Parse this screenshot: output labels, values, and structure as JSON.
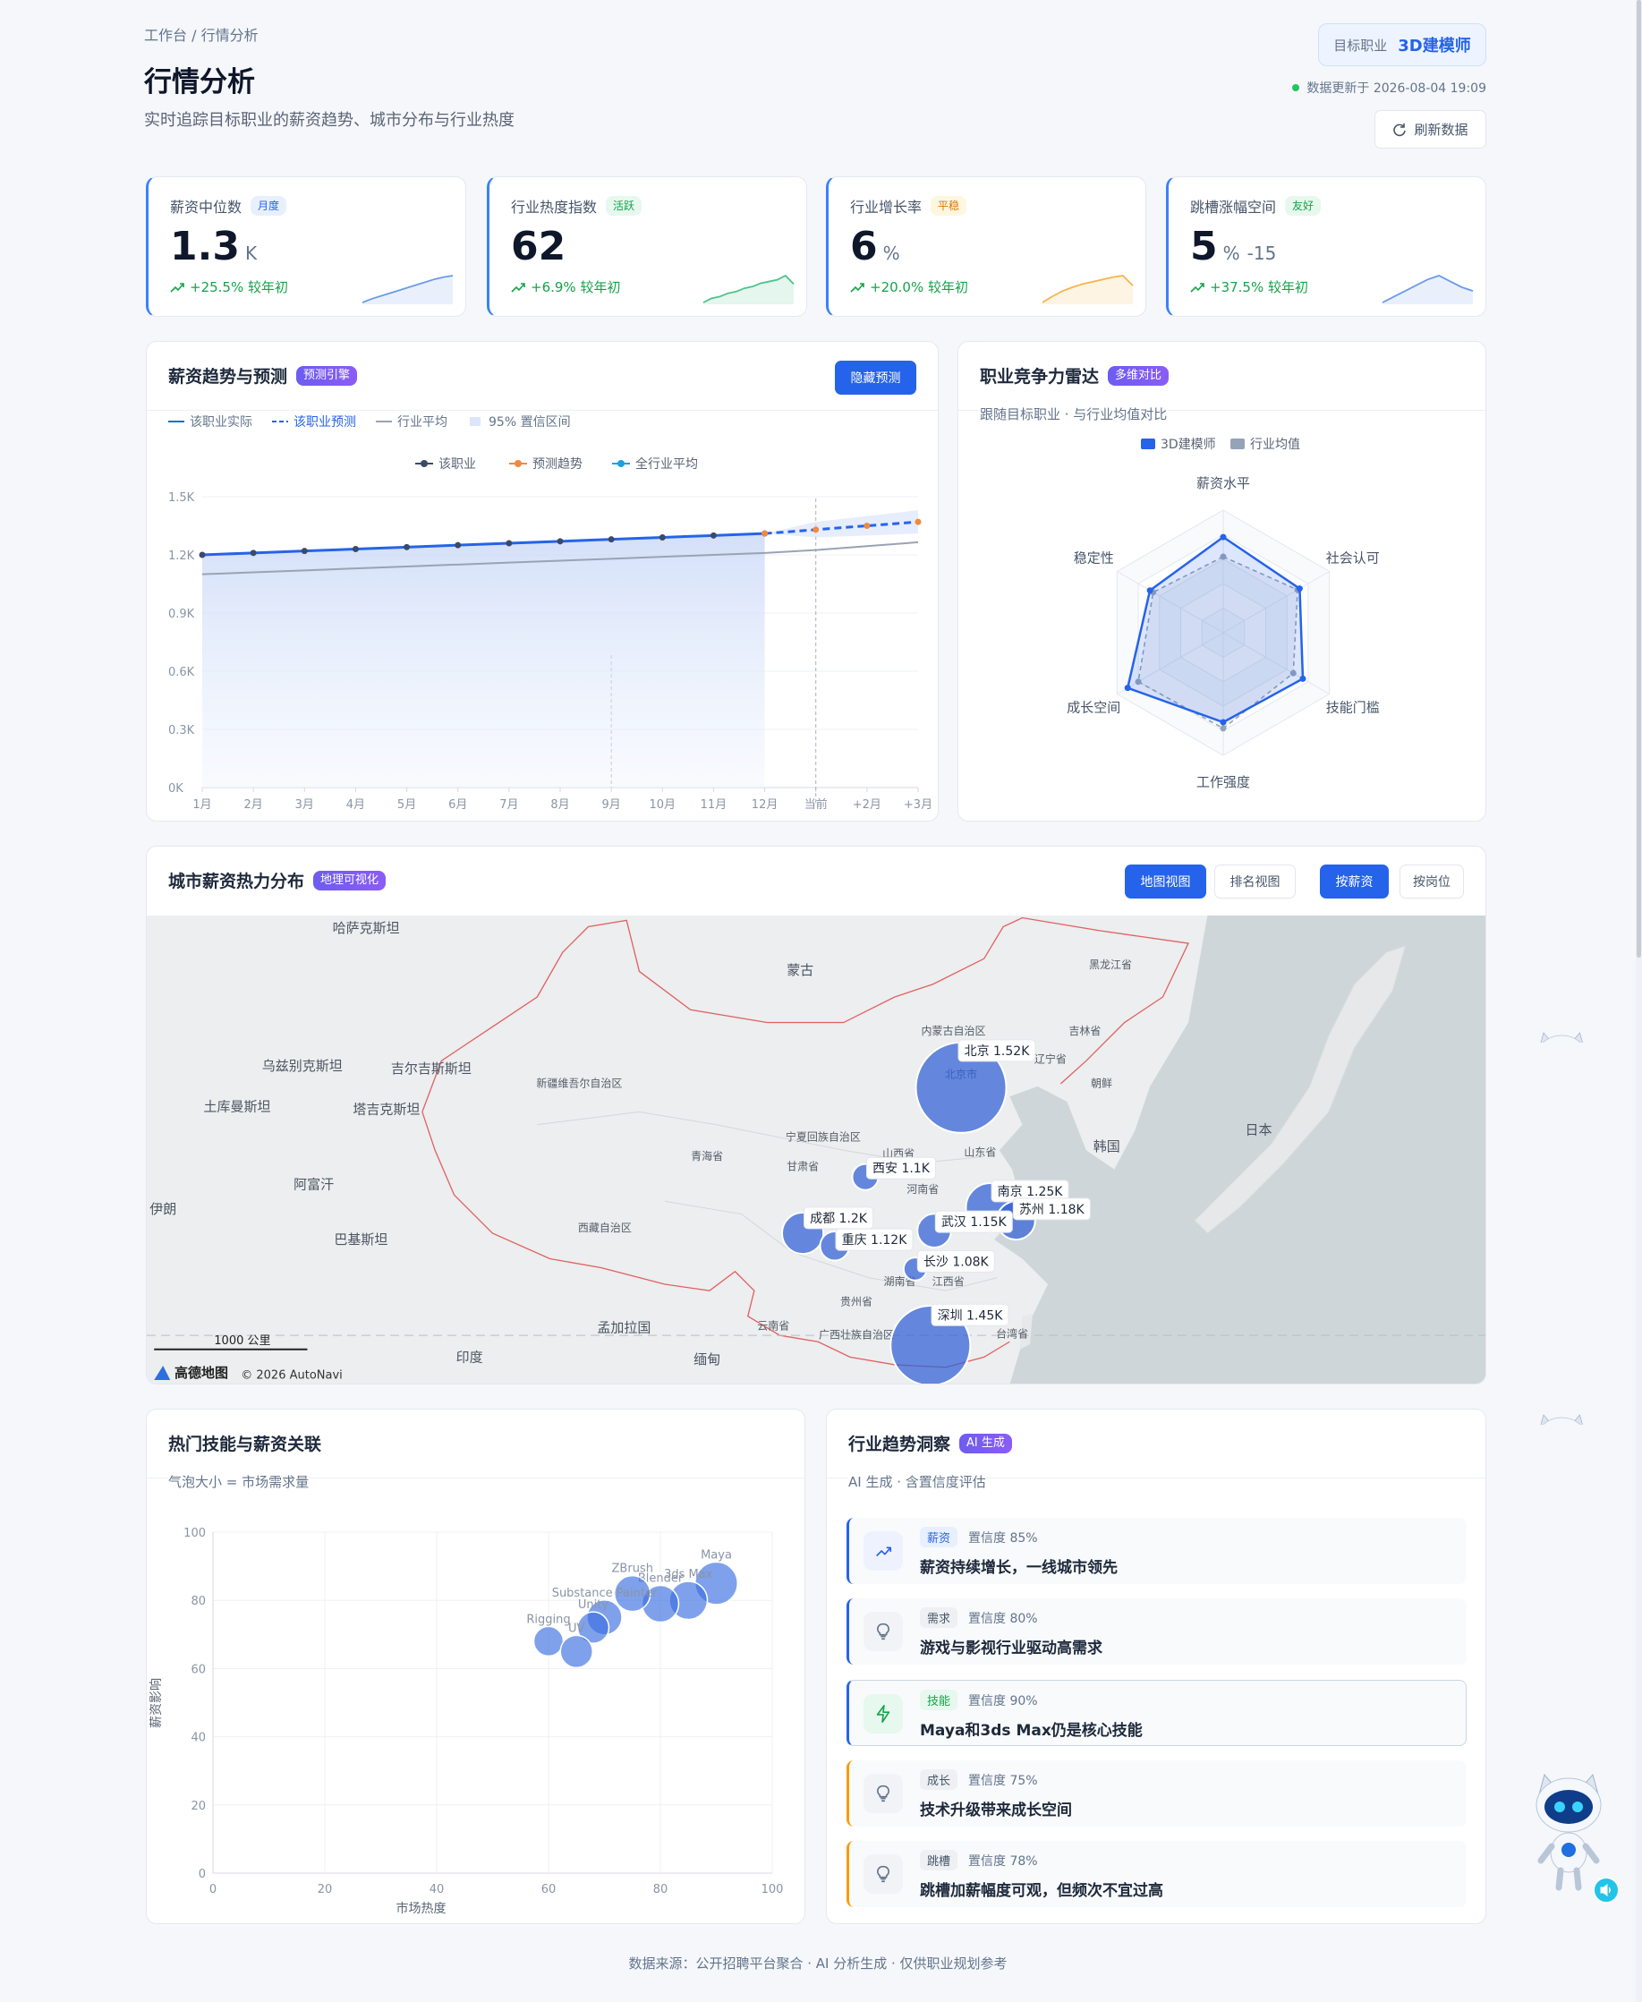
{
  "header": {
    "breadcrumb": "工作台 / 行情分析",
    "title": "行情分析",
    "subtitle": "实时追踪目标职业的薪资趋势、城市分布与行业热度",
    "target_label": "目标职业",
    "target_value": "3D建模师",
    "update_text": "数据更新于 2026-08-04 19:09",
    "refresh": "刷新数据"
  },
  "kpis": [
    {
      "label": "薪资中位数",
      "badge": "月度",
      "value": 1.3,
      "unit": "K",
      "change": "+25.5% 较年初",
      "color": "#6b9be8",
      "spark": [
        2,
        3,
        3.8,
        4.6,
        5.4,
        6.2,
        7,
        7.8,
        8.6,
        9.2,
        9.6
      ]
    },
    {
      "label": "行业热度指数",
      "badge": "活跃",
      "value": 62,
      "change": "+6.9% 较年初",
      "color": "#4cc38a",
      "spark": [
        2,
        3,
        3.4,
        4.2,
        4.6,
        5.4,
        5.8,
        6.6,
        7,
        7.4,
        8.4,
        6.4
      ]
    },
    {
      "label": "行业增长率",
      "badge": "平稳",
      "value": 6,
      "unit": "%",
      "change": "+20.0% 较年初",
      "color": "#f5b54a",
      "spark": [
        2,
        3.6,
        5,
        6,
        6.8,
        7.4,
        8,
        8.6,
        9,
        6.4
      ]
    },
    {
      "label": "跳槽涨幅空间",
      "badge": "友好",
      "value": 5,
      "unit": "%",
      "extra": -15,
      "change": "+37.5% 较年初",
      "color": "#6b9be8",
      "spark": [
        2,
        3.5,
        5,
        6.5,
        8,
        9,
        7.5,
        6,
        5
      ]
    }
  ],
  "salary_trend": {
    "title": "薪资趋势与预测",
    "badge": "预测引擎",
    "button": "隐藏预测",
    "custom_legend": [
      "该职业实际",
      "该职业预测",
      "行业平均",
      "95% 置信区间"
    ],
    "chart_data": {
      "type": "line",
      "categories": [
        "1月",
        "2月",
        "3月",
        "4月",
        "5月",
        "6月",
        "7月",
        "8月",
        "9月",
        "10月",
        "11月",
        "12月",
        "当前",
        "+2月",
        "+3月"
      ],
      "ylim": [
        0,
        1500
      ],
      "yticks": [
        {
          "value": 0,
          "label": "0K"
        },
        {
          "value": 300,
          "label": "0.3K"
        },
        {
          "value": 600,
          "label": "0.6K"
        },
        {
          "value": 900,
          "label": "0.9K"
        },
        {
          "value": 1200,
          "label": "1.2K"
        },
        {
          "value": 1500,
          "label": "1.5K"
        }
      ],
      "grid": true,
      "series": [
        {
          "name": "该职业",
          "color": "#3b4a6b",
          "line_color": "#2563eb",
          "values": [
            1200,
            1210,
            1220,
            1230,
            1240,
            1250,
            1260,
            1270,
            1280,
            1290,
            1300,
            1310,
            null,
            null,
            null
          ]
        },
        {
          "name": "预测趋势",
          "color": "#f08a3c",
          "line_color": "#2563eb",
          "values": [
            null,
            null,
            null,
            null,
            null,
            null,
            null,
            null,
            null,
            null,
            null,
            1310,
            1330,
            1350,
            1370
          ]
        },
        {
          "name": "全行业平均",
          "color": "#1aa3d9",
          "line_color": "#9aa3b2",
          "values": [
            1100,
            1110,
            1120,
            1130,
            1140,
            1150,
            1160,
            1170,
            1180,
            1190,
            1200,
            1210,
            1225,
            1245,
            1265
          ]
        }
      ],
      "band": {
        "lower": [
          null,
          null,
          null,
          null,
          null,
          null,
          null,
          null,
          null,
          null,
          null,
          1310,
          1290,
          1300,
          1310
        ],
        "upper": [
          null,
          null,
          null,
          null,
          null,
          null,
          null,
          null,
          null,
          null,
          null,
          1310,
          1370,
          1400,
          1430
        ]
      }
    }
  },
  "radar": {
    "title": "职业竞争力雷达",
    "badge": "多维对比",
    "subtitle": "跟随目标职业 · 与行业均值对比",
    "chart_data": {
      "type": "radar",
      "indicators": [
        "薪资水平",
        "社会认可",
        "技能门槛",
        "工作强度",
        "成长空间",
        "稳定性"
      ],
      "rlim": [
        0,
        100
      ],
      "series": [
        {
          "name": "3D建模师",
          "color": "#2563eb",
          "values": [
            78,
            72,
            75,
            73,
            90,
            69
          ]
        },
        {
          "name": "行业均值",
          "color": "#94a3b8",
          "values": [
            62,
            70,
            66,
            78,
            80,
            66
          ]
        }
      ]
    }
  },
  "city_map": {
    "title": "城市薪资热力分布",
    "badge": "地理可视化",
    "buttons": [
      "地图视图",
      "排名视图",
      "按薪资",
      "按岗位"
    ],
    "place_labels": [
      "哈萨克斯坦",
      "蒙古",
      "黑龙江省",
      "内蒙古自治区",
      "吉林省",
      "辽宁省",
      "乌兹别克斯坦",
      "吉尔吉斯斯坦",
      "新疆维吾尔自治区",
      "朝鲜",
      "北京市",
      "土库曼斯坦",
      "塔吉克斯坦",
      "日本",
      "宁夏回族自治区",
      "韩国",
      "山西省",
      "山东省",
      "青海省",
      "甘肃省",
      "阿富汗",
      "河南省",
      "伊朗",
      "西藏自治区",
      "巴基斯坦",
      "江西省",
      "湖南省",
      "贵州省",
      "孟加拉国",
      "云南省",
      "广西壮族自治区",
      "台湾省",
      "印度",
      "缅甸"
    ],
    "scale": "1000 公里",
    "logo": "高德地图",
    "attribution": "© 2026 AutoNavi",
    "chart_data": {
      "type": "bubble-map",
      "color": "#2f5fd6",
      "categories": [
        "北京",
        "西安",
        "成都",
        "重庆",
        "武汉",
        "长沙",
        "南京",
        "苏州",
        "深圳"
      ],
      "values": [
        1520,
        1100,
        1200,
        1120,
        1150,
        1080,
        1250,
        1180,
        1450
      ],
      "value_labels": [
        "北京 1.52K",
        "西安 1.1K",
        "成都 1.2K",
        "重庆 1.12K",
        "武汉 1.15K",
        "长沙 1.08K",
        "南京 1.25K",
        "苏州 1.18K",
        "深圳 1.45K"
      ]
    }
  },
  "skills": {
    "title": "热门技能与薪资关联",
    "subtitle": "气泡大小 = 市场需求量",
    "chart_data": {
      "type": "scatter",
      "xlabel": "市场热度",
      "ylabel": "薪资影响",
      "xlim": [
        0,
        100
      ],
      "ylim": [
        0,
        100
      ],
      "xticks": [
        0,
        20,
        40,
        60,
        80,
        100
      ],
      "yticks": [
        0,
        20,
        40,
        60,
        80,
        100
      ],
      "grid": true,
      "color": "#3b6fe0",
      "labels": [
        "Maya",
        "3ds Max",
        "Blender",
        "ZBrush",
        "Substance Painter",
        "Unity",
        "Rigging",
        "UV"
      ],
      "x": [
        90,
        85,
        80,
        75,
        70,
        68,
        60,
        65
      ],
      "values": [
        85,
        80,
        79,
        82,
        75,
        72,
        68,
        65
      ],
      "sizes": [
        95,
        85,
        82,
        80,
        78,
        70,
        66,
        72
      ]
    }
  },
  "insights": {
    "title": "行业趋势洞察",
    "badge": "AI 生成",
    "subtitle": "AI 生成 · 含置信度评估",
    "items": [
      {
        "tag": "薪资",
        "confidence": "置信度 85%",
        "title": "薪资持续增长，一线城市领先"
      },
      {
        "tag": "需求",
        "confidence": "置信度 80%",
        "title": "游戏与影视行业驱动高需求"
      },
      {
        "tag": "技能",
        "confidence": "置信度 90%",
        "title": "Maya和3ds Max仍是核心技能"
      },
      {
        "tag": "成长",
        "confidence": "置信度 75%",
        "title": "技术升级带来成长空间"
      },
      {
        "tag": "跳槽",
        "confidence": "置信度 78%",
        "title": "跳槽加薪幅度可观，但频次不宜过高"
      }
    ]
  },
  "footer": "数据来源：公开招聘平台聚合 · AI 分析生成 · 仅供职业规划参考"
}
